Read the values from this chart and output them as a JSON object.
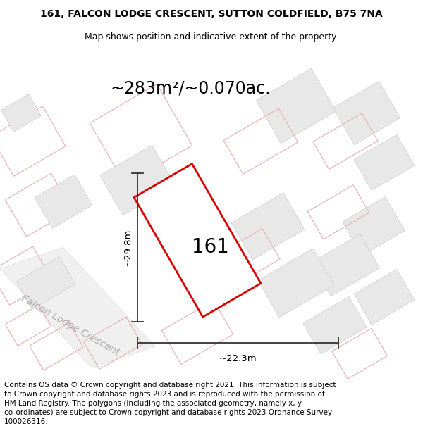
{
  "title_line1": "161, FALCON LODGE CRESCENT, SUTTON COLDFIELD, B75 7NA",
  "title_line2": "Map shows position and indicative extent of the property.",
  "footer_text": "Contains OS data © Crown copyright and database right 2021. This information is subject\nto Crown copyright and database rights 2023 and is reproduced with the permission of\nHM Land Registry. The polygons (including the associated geometry, namely x, y\nco-ordinates) are subject to Crown copyright and database rights 2023 Ordnance Survey\n100026316.",
  "area_label": "~283m²/~0.070ac.",
  "width_label": "~22.3m",
  "height_label": "~29.8m",
  "plot_number": "161",
  "road_label": "Falcon Lodge Crescent",
  "bg_color": "#ffffff",
  "map_bg": "#ffffff",
  "plot_ec": "#dd0000",
  "plot_fc": "#ffffff",
  "plot_lw": 2.0,
  "nbr_ec": "#e8a0a0",
  "nbr_fc": "#e8e8e8",
  "nbr_lw": 0.8,
  "outline_ec": "#e8b0b0",
  "outline_fc": "none",
  "road_fc": "#eeeeee",
  "road_ec": "#cccccc",
  "dim_color": "#333333",
  "road_label_color": "#aaaaaa",
  "title_fs": 10,
  "sub_fs": 9,
  "footer_fs": 7.5,
  "area_fs": 17,
  "label_fs": 9.5,
  "plot_num_fs": 20,
  "road_label_fs": 10
}
